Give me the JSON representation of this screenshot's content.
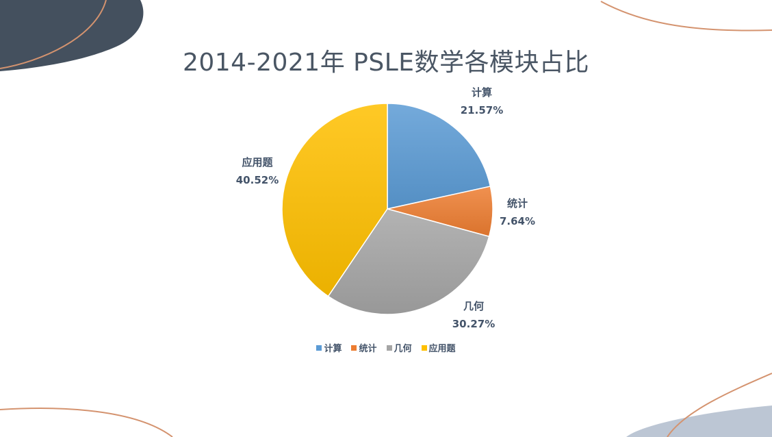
{
  "chart_data": {
    "type": "pie",
    "title": "2014-2021年 PSLE数学各模块占比",
    "slices": [
      {
        "name": "计算",
        "value": 21.57,
        "label": "21.57%",
        "color": "#5b9bd5"
      },
      {
        "name": "统计",
        "value": 7.64,
        "label": "7.64%",
        "color": "#ed7d31"
      },
      {
        "name": "几何",
        "value": 30.27,
        "label": "30.27%",
        "color": "#a5a5a5"
      },
      {
        "name": "应用题",
        "value": 40.52,
        "label": "40.52%",
        "color": "#ffc000"
      }
    ],
    "legend": "bottom"
  },
  "colors": {
    "title": "#4a5664",
    "label": "#44546a",
    "deco_dark": "#44505e",
    "deco_light": "#bcc6d4",
    "deco_line": "#d4936f"
  }
}
